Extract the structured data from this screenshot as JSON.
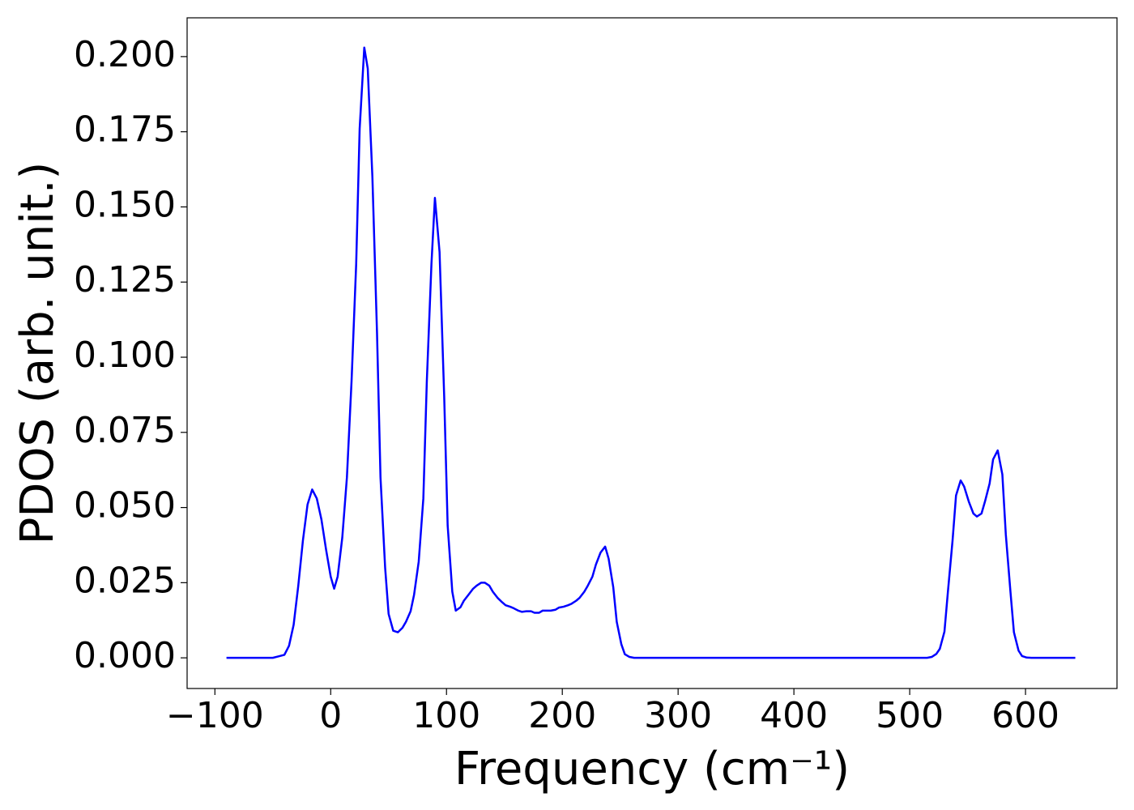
{
  "chart_data": {
    "type": "line",
    "xlabel": "Frequency (cm⁻¹)",
    "ylabel": "PDOS (arb. unit.)",
    "x": [
      -90,
      -80,
      -70,
      -60,
      -50,
      -45,
      -40,
      -36,
      -32,
      -28,
      -24,
      -20,
      -16,
      -12,
      -8,
      -4,
      0,
      3,
      6,
      10,
      14,
      18,
      22,
      25,
      29,
      32,
      36,
      40,
      43,
      47,
      50,
      54,
      58,
      62,
      65,
      69,
      72,
      76,
      80,
      83,
      87,
      90,
      94,
      98,
      101,
      105,
      108,
      112,
      115,
      119,
      123,
      126,
      130,
      133,
      137,
      140,
      144,
      148,
      151,
      155,
      158,
      162,
      165,
      169,
      173,
      176,
      180,
      183,
      187,
      190,
      194,
      197,
      201,
      205,
      208,
      212,
      215,
      219,
      222,
      226,
      229,
      233,
      237,
      240,
      244,
      247,
      251,
      254,
      258,
      262,
      300,
      400,
      500,
      515,
      519,
      523,
      526,
      530,
      533,
      537,
      540,
      544,
      547,
      551,
      555,
      558,
      562,
      565,
      569,
      572,
      576,
      580,
      583,
      587,
      590,
      594,
      597,
      601,
      605,
      643
    ],
    "series": [
      {
        "name": "PDOS",
        "color": "#0000ff",
        "values": [
          0,
          0,
          0,
          0,
          0,
          0.0005,
          0.001,
          0.004,
          0.011,
          0.024,
          0.039,
          0.051,
          0.056,
          0.053,
          0.046,
          0.036,
          0.027,
          0.023,
          0.027,
          0.04,
          0.06,
          0.092,
          0.131,
          0.176,
          0.203,
          0.196,
          0.16,
          0.108,
          0.06,
          0.03,
          0.0146,
          0.009,
          0.0085,
          0.01,
          0.012,
          0.0155,
          0.021,
          0.032,
          0.053,
          0.092,
          0.131,
          0.153,
          0.135,
          0.087,
          0.044,
          0.022,
          0.0157,
          0.0168,
          0.019,
          0.021,
          0.023,
          0.024,
          0.025,
          0.025,
          0.024,
          0.022,
          0.02,
          0.0185,
          0.0175,
          0.017,
          0.0165,
          0.0157,
          0.0153,
          0.0155,
          0.0155,
          0.015,
          0.015,
          0.0157,
          0.0157,
          0.0157,
          0.016,
          0.0167,
          0.017,
          0.0175,
          0.018,
          0.019,
          0.02,
          0.022,
          0.024,
          0.027,
          0.031,
          0.035,
          0.037,
          0.033,
          0.0235,
          0.012,
          0.0045,
          0.0012,
          0.0003,
          0,
          0,
          0,
          0,
          0,
          0.0003,
          0.0013,
          0.003,
          0.0087,
          0.022,
          0.039,
          0.054,
          0.059,
          0.057,
          0.052,
          0.048,
          0.047,
          0.048,
          0.052,
          0.058,
          0.066,
          0.069,
          0.061,
          0.041,
          0.022,
          0.0085,
          0.0024,
          0.0006,
          0.0001,
          0,
          0
        ]
      }
    ],
    "xlim": [
      -124,
      679
    ],
    "ylim": [
      -0.0102,
      0.2129
    ],
    "xticks": [
      {
        "value": -100,
        "label": "−100"
      },
      0,
      100,
      200,
      300,
      400,
      500,
      600
    ],
    "yticks": [
      {
        "value": 0,
        "label": "0.000"
      },
      {
        "value": 0.025,
        "label": "0.025"
      },
      {
        "value": 0.05,
        "label": "0.050"
      },
      {
        "value": 0.075,
        "label": "0.075"
      },
      {
        "value": 0.1,
        "label": "0.100"
      },
      {
        "value": 0.125,
        "label": "0.125"
      },
      {
        "value": 0.15,
        "label": "0.150"
      },
      {
        "value": 0.175,
        "label": "0.175"
      },
      {
        "value": 0.2,
        "label": "0.200"
      }
    ],
    "grid": false
  }
}
